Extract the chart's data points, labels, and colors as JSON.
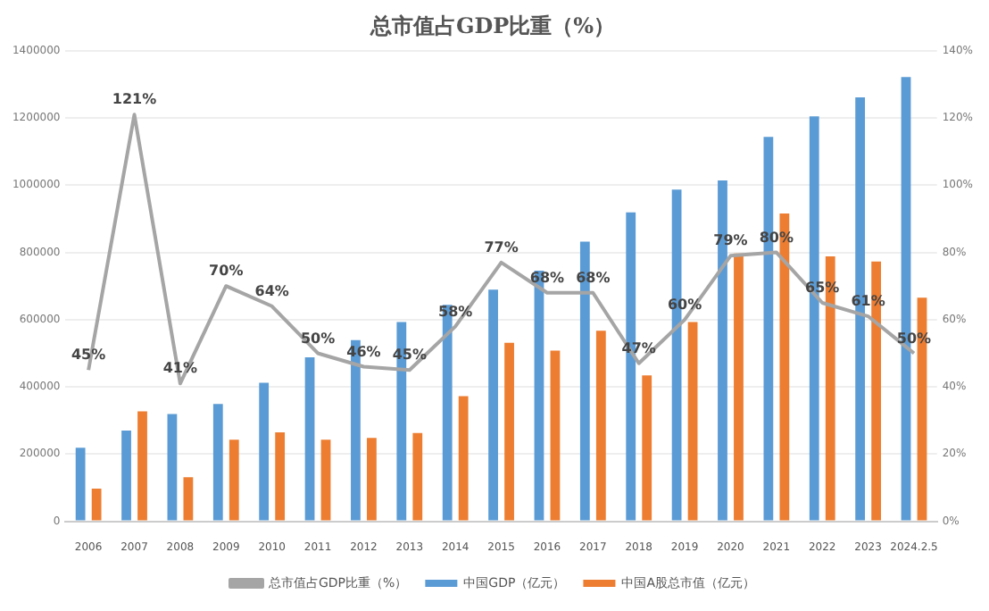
{
  "chart_data": {
    "type": "bar",
    "title": "总市值占GDP比重（%）",
    "categories": [
      "2006",
      "2007",
      "2008",
      "2009",
      "2010",
      "2011",
      "2012",
      "2013",
      "2014",
      "2015",
      "2016",
      "2017",
      "2018",
      "2019",
      "2020",
      "2021",
      "2022",
      "2023",
      "2024.2.5"
    ],
    "series": [
      {
        "name": "中国GDP（亿元）",
        "color": "#5b9bd5",
        "values": [
          219000,
          270000,
          319000,
          349000,
          412000,
          488000,
          539000,
          593000,
          644000,
          689000,
          746000,
          832000,
          919000,
          987000,
          1014000,
          1144000,
          1205000,
          1261000,
          1322000
        ]
      },
      {
        "name": "中国A股总市值（亿元）",
        "color": "#ed7d31",
        "values": [
          97000,
          327000,
          131000,
          243000,
          265000,
          243000,
          248000,
          263000,
          372000,
          531000,
          508000,
          567000,
          434000,
          593000,
          797000,
          916000,
          788000,
          773000,
          665000
        ]
      },
      {
        "name": "总市值占GDP比重（%）",
        "type": "line",
        "axis": "y2",
        "color": "#a5a5a5",
        "marker": "none",
        "values": [
          45,
          121,
          41,
          70,
          64,
          50,
          46,
          45,
          58,
          77,
          68,
          68,
          47,
          60,
          79,
          80,
          65,
          61,
          50
        ],
        "value_labels": [
          "45%",
          "121%",
          "41%",
          "70%",
          "64%",
          "50%",
          "46%",
          "45%",
          "58%",
          "77%",
          "68%",
          "68%",
          "47%",
          "60%",
          "79%",
          "80%",
          "65%",
          "61%",
          "50%"
        ]
      }
    ],
    "ylim": [
      0,
      1400000
    ],
    "yticks": [
      0,
      200000,
      400000,
      600000,
      800000,
      1000000,
      1200000,
      1400000
    ],
    "y2lim": [
      0,
      140
    ],
    "y2ticks": [
      {
        "value": 0,
        "label": "0%"
      },
      {
        "value": 20,
        "label": "20%"
      },
      {
        "value": 40,
        "label": "40%"
      },
      {
        "value": 60,
        "label": "60%"
      },
      {
        "value": 80,
        "label": "80%"
      },
      {
        "value": 100,
        "label": "100%"
      },
      {
        "value": 120,
        "label": "120%"
      },
      {
        "value": 140,
        "label": "140%"
      }
    ],
    "grid": "y",
    "legend": "bottom"
  }
}
